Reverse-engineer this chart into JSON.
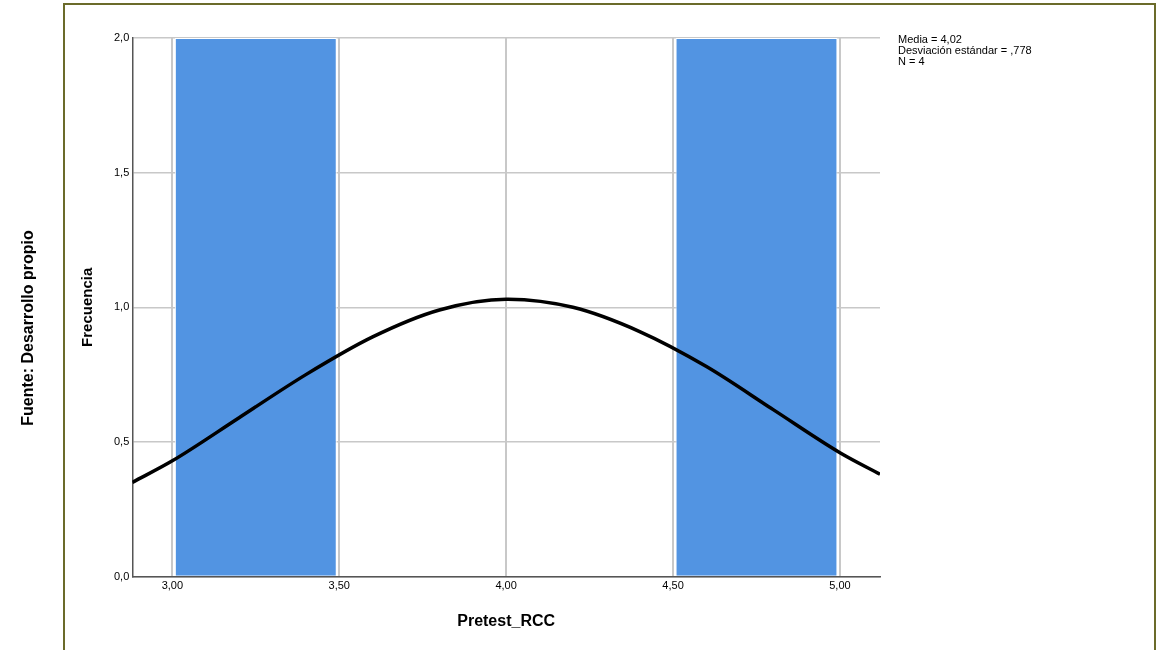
{
  "chart_data": {
    "type": "histogram",
    "xlabel": "Pretest_RCC",
    "ylabel": "Frecuencia",
    "annotations": [
      "Fuente: Desarrollo propio",
      "Media = 4,02",
      "Desviación estándar = ,778",
      "N = 4"
    ],
    "bins": [
      3,
      3.5,
      4,
      4.5,
      5
    ],
    "values": [
      2,
      0,
      0,
      2
    ],
    "color": "#5294e2",
    "series": [
      {
        "type": "line",
        "color": "#000000",
        "x": [
          2.88,
          3.0,
          3.2,
          3.4,
          3.6,
          3.8,
          4.0,
          4.2,
          4.4,
          4.6,
          4.8,
          5.0,
          5.12
        ],
        "values": [
          0.35,
          0.43,
          0.59,
          0.75,
          0.89,
          0.99,
          1.03,
          1.0,
          0.91,
          0.78,
          0.62,
          0.46,
          0.38
        ]
      }
    ],
    "xlim": [
      2.88,
      5.12
    ],
    "xticks": [
      {
        "value": 3,
        "label": "3,00"
      },
      {
        "value": 3.5,
        "label": "3,50"
      },
      {
        "value": 4,
        "label": "4,00"
      },
      {
        "value": 4.5,
        "label": "4,50"
      },
      {
        "value": 5,
        "label": "5,00"
      }
    ],
    "ylim": [
      0,
      2
    ],
    "yticks": [
      {
        "value": 0,
        "label": "0,0"
      },
      {
        "value": 0.5,
        "label": "0,5"
      },
      {
        "value": 1,
        "label": "1,0"
      },
      {
        "value": 1.5,
        "label": "1,5"
      },
      {
        "value": 2,
        "label": "2,0"
      }
    ],
    "grid": true,
    "legend": false
  }
}
